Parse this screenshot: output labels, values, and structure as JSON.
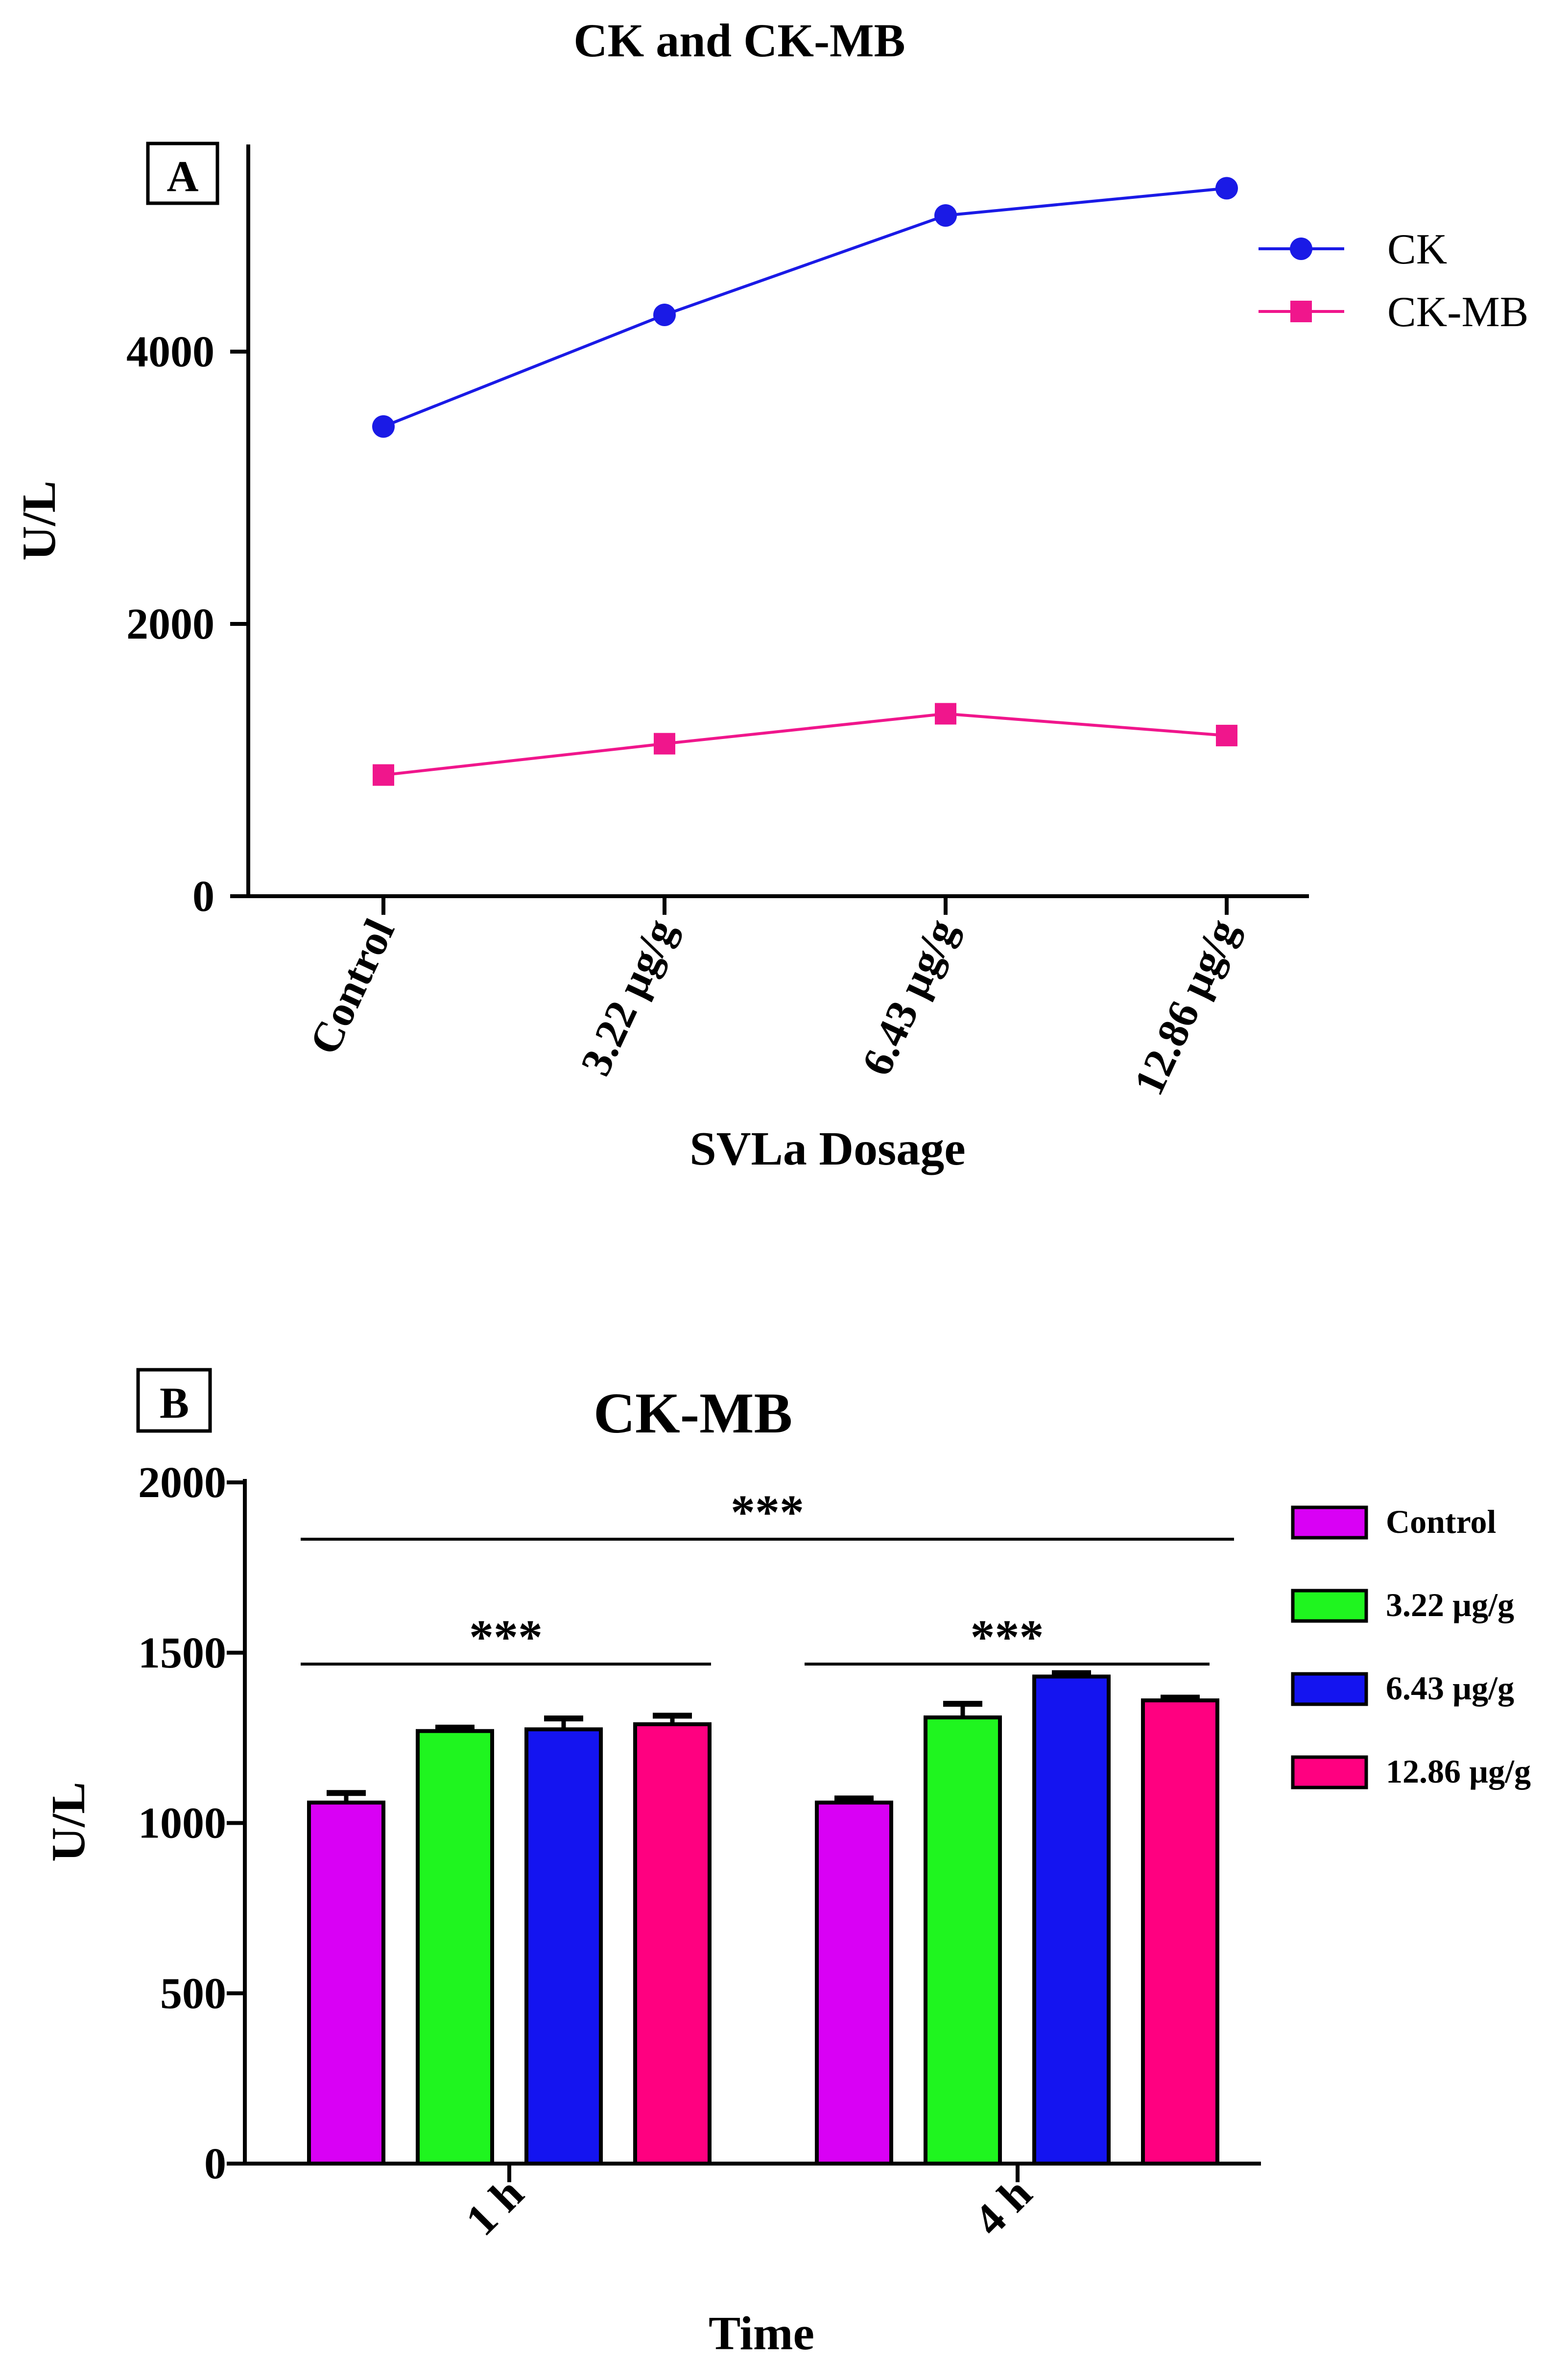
{
  "figure_title": "CK and CK-MB",
  "chart_data": [
    {
      "type": "line",
      "panel_label": "A",
      "title": "",
      "xlabel": "SVLa Dosage",
      "ylabel": "U/L",
      "categories": [
        "Control",
        "3.22 µg/g",
        "6.43 µg/g",
        "12.86 µg/g"
      ],
      "ylim": [
        0,
        5500
      ],
      "yticks": [
        "0",
        "2000",
        "4000"
      ],
      "yticks_values": [
        0,
        2000,
        4000
      ],
      "legend_position": "top-right",
      "series": [
        {
          "name": "CK",
          "marker": "circle",
          "color": "#1a1ae6",
          "values": [
            3450,
            4270,
            5000,
            5200
          ]
        },
        {
          "name": "CK-MB",
          "marker": "square",
          "color": "#f0168c",
          "values": [
            890,
            1120,
            1340,
            1180
          ]
        }
      ]
    },
    {
      "type": "bar",
      "panel_label": "B",
      "title": "CK-MB",
      "xlabel": "Time",
      "ylabel": "U/L",
      "categories": [
        "1 h",
        "4 h"
      ],
      "ylim": [
        0,
        2000
      ],
      "yticks": [
        "0",
        "500",
        "1000",
        "1500",
        "2000"
      ],
      "yticks_values": [
        0,
        500,
        1000,
        1500,
        2000
      ],
      "legend_position": "top-right",
      "series": [
        {
          "name": "Control",
          "color": "#d900f5",
          "values": [
            1060,
            1060
          ],
          "errors": [
            28,
            12
          ]
        },
        {
          "name": "3.22 µg/g",
          "color": "#1ff51f",
          "values": [
            1270,
            1310
          ],
          "errors": [
            10,
            40
          ]
        },
        {
          "name": "6.43 µg/g",
          "color": "#1414f0",
          "values": [
            1275,
            1430
          ],
          "errors": [
            32,
            10
          ]
        },
        {
          "name": "12.86 µg/g",
          "color": "#ff0080",
          "values": [
            1290,
            1360
          ],
          "errors": [
            25,
            8
          ]
        }
      ],
      "annotations": [
        {
          "text": "***",
          "span": "all"
        },
        {
          "text": "***",
          "span": "1 h"
        },
        {
          "text": "***",
          "span": "4 h"
        }
      ]
    }
  ]
}
